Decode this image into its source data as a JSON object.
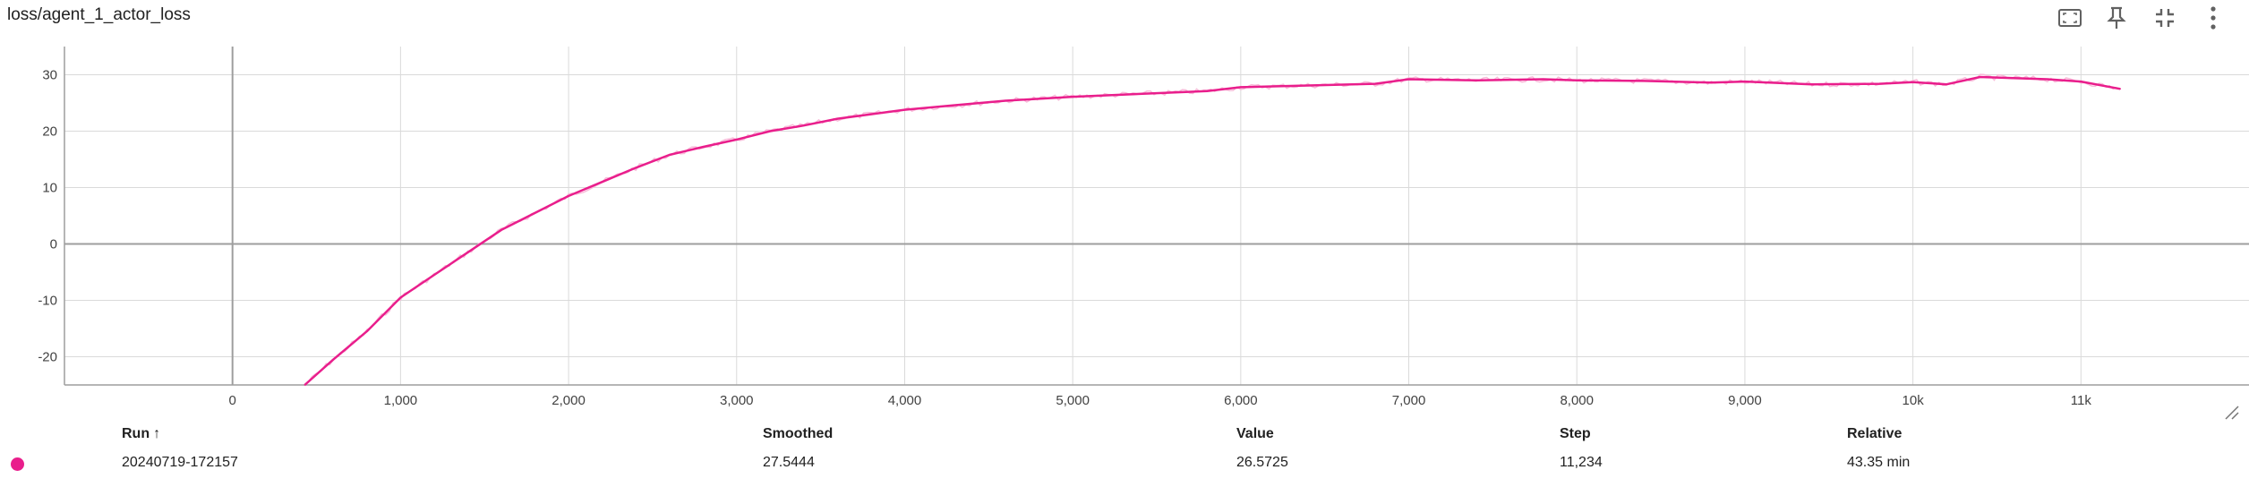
{
  "card": {
    "title": "loss/agent_1_actor_loss",
    "toolbar": {
      "fit_icon": "fit-domain-icon",
      "pin_icon": "pin-icon",
      "collapse_icon": "fullscreen-exit-icon",
      "more_icon": "more-vert-icon"
    }
  },
  "colors": {
    "series": "#e91e8c",
    "series_raw": "#f8bbd9",
    "grid": "#dadada",
    "axis": "#9e9e9e",
    "text": "#212121"
  },
  "chart_data": {
    "type": "line",
    "title": "loss/agent_1_actor_loss",
    "xlabel": "",
    "ylabel": "",
    "xlim": [
      -1000,
      12000
    ],
    "ylim": [
      -25,
      35
    ],
    "x_ticks": [
      0,
      1000,
      2000,
      3000,
      4000,
      5000,
      6000,
      7000,
      8000,
      9000,
      10000,
      11000
    ],
    "x_tick_labels": [
      "0",
      "1,000",
      "2,000",
      "3,000",
      "4,000",
      "5,000",
      "6,000",
      "7,000",
      "8,000",
      "9,000",
      "10k",
      "11k"
    ],
    "y_ticks": [
      -20,
      -10,
      0,
      10,
      20,
      30
    ],
    "y_tick_labels": [
      "-20",
      "-10",
      "0",
      "10",
      "20",
      "30"
    ],
    "grid": true,
    "series": [
      {
        "name": "20240719-172157",
        "x": [
          430,
          600,
          800,
          1000,
          1200,
          1400,
          1600,
          1800,
          2000,
          2200,
          2400,
          2600,
          2800,
          3000,
          3200,
          3400,
          3600,
          3800,
          4000,
          4300,
          4600,
          5000,
          5400,
          5800,
          6000,
          6400,
          6800,
          7000,
          7400,
          7800,
          8000,
          8400,
          8800,
          9000,
          9400,
          9800,
          10000,
          10200,
          10400,
          10800,
          11000,
          11234
        ],
        "y": [
          -25,
          -20.5,
          -15.5,
          -9.5,
          -5.5,
          -1.5,
          2.5,
          5.5,
          8.5,
          11,
          13.5,
          15.8,
          17.2,
          18.5,
          20,
          21,
          22.2,
          23,
          23.8,
          24.6,
          25.4,
          26.1,
          26.6,
          27.1,
          27.8,
          28.1,
          28.4,
          29.2,
          29.0,
          29.2,
          29.0,
          28.9,
          28.6,
          28.8,
          28.3,
          28.4,
          28.7,
          28.3,
          29.6,
          29.2,
          28.8,
          27.5
        ]
      }
    ]
  },
  "table": {
    "headers": {
      "run": "Run",
      "sort_indicator": "↑",
      "smoothed": "Smoothed",
      "value": "Value",
      "step": "Step",
      "relative": "Relative"
    },
    "rows": [
      {
        "run": "20240719-172157",
        "smoothed": "27.5444",
        "value": "26.5725",
        "step": "11,234",
        "relative": "43.35 min"
      }
    ]
  }
}
